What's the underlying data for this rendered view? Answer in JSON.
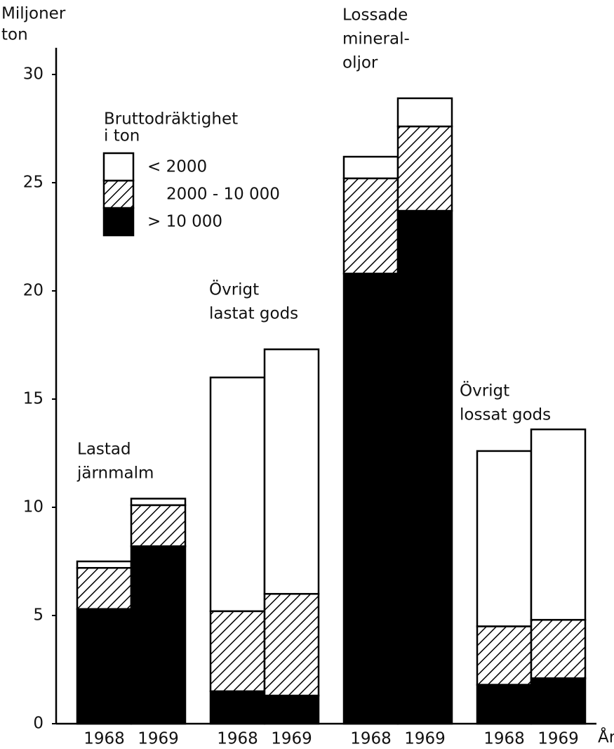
{
  "chart_data": {
    "type": "stacked_bar",
    "y_label": [
      "Miljoner",
      "ton"
    ],
    "x_label": "År",
    "categories": [
      "1968",
      "1969",
      "1968",
      "1969",
      "1968",
      "1969",
      "1968",
      "1969"
    ],
    "group_labels": [
      [
        "Lastad",
        "järnmalm"
      ],
      [
        "Övrigt",
        "lastat gods"
      ],
      [
        "Lossade",
        "mineral-",
        "oljor"
      ],
      [
        "Övrigt",
        "lossat gods"
      ]
    ],
    "legend_title": [
      "Bruttodräktighet",
      "i ton"
    ],
    "series": [
      {
        "name": "> 10 000",
        "color": "#000000",
        "fill": "solid",
        "values": [
          5.3,
          8.2,
          1.5,
          1.3,
          20.8,
          23.7,
          1.8,
          2.1
        ]
      },
      {
        "name": "2000 - 10 000",
        "color": "#000000",
        "fill": "hatch",
        "values": [
          1.9,
          1.9,
          3.7,
          4.7,
          4.4,
          3.9,
          2.7,
          2.7
        ]
      },
      {
        "name": "< 2000",
        "color": "#ffffff",
        "fill": "solid",
        "values": [
          0.3,
          0.3,
          10.8,
          11.3,
          1.0,
          1.3,
          8.1,
          8.8
        ]
      }
    ],
    "ylim": [
      0,
      30
    ],
    "yticks": [
      0,
      5,
      10,
      15,
      20,
      25,
      30
    ]
  }
}
